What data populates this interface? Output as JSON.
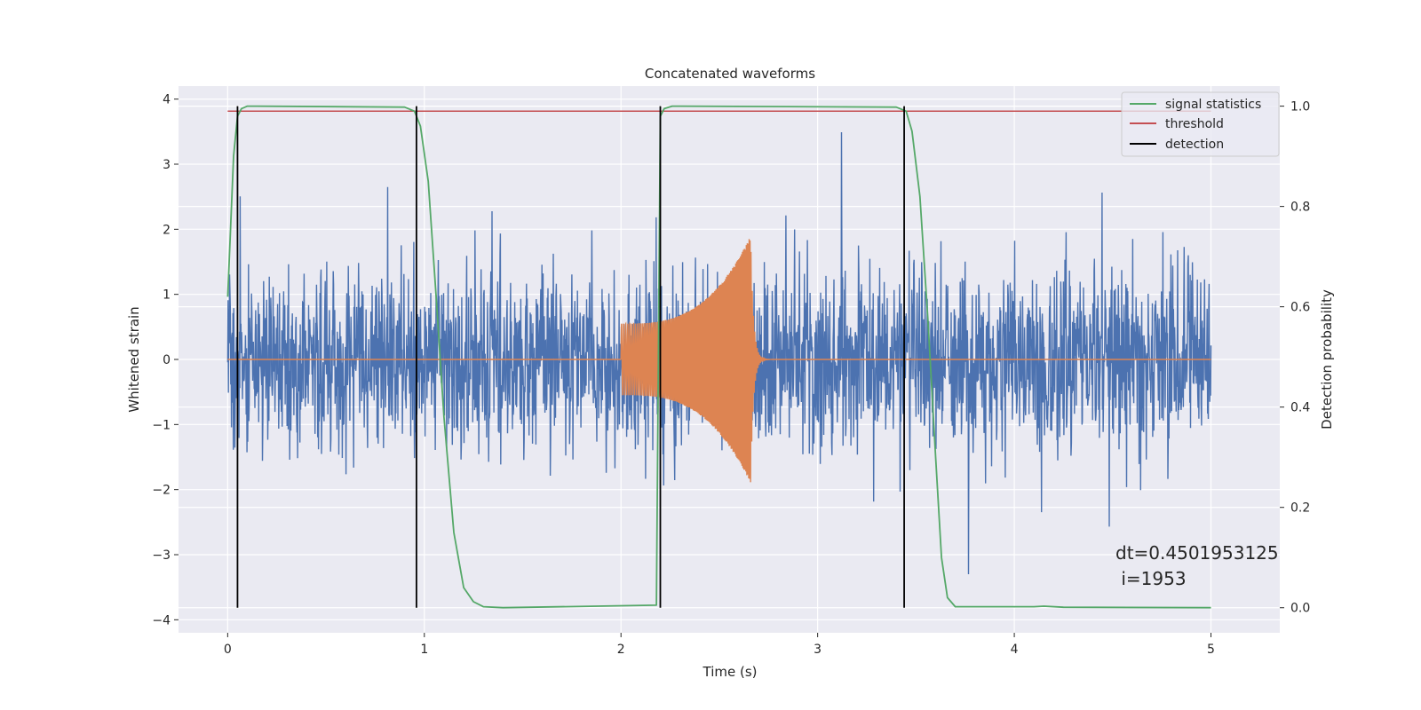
{
  "chart_data": {
    "type": "line",
    "title": "Concatenated waveforms",
    "xlabel": "Time (s)",
    "ylabel": "Whitened strain",
    "y2label": "Detection probability",
    "xlim": [
      -0.25,
      5.35
    ],
    "ylim": [
      -4.2,
      4.2
    ],
    "y2lim": [
      -0.05,
      1.04
    ],
    "x_ticks": [
      0,
      1,
      2,
      3,
      4,
      5
    ],
    "y_ticks": [
      -4,
      -3,
      -2,
      -1,
      0,
      1,
      2,
      3,
      4
    ],
    "y2_ticks": [
      0.0,
      0.2,
      0.4,
      0.6,
      0.8,
      1.0
    ],
    "x_tick_labels": [
      "0",
      "1",
      "2",
      "3",
      "4",
      "5"
    ],
    "y_tick_labels": [
      "−4",
      "−3",
      "−2",
      "−1",
      "0",
      "1",
      "2",
      "3",
      "4"
    ],
    "y2_tick_labels": [
      "0.0",
      "0.2",
      "0.4",
      "0.6",
      "0.8",
      "1.0"
    ],
    "grid": true,
    "legend_placement": "top-right",
    "colors": {
      "background": "#eaeaf2",
      "grid": "#ffffff",
      "noise": "#4c72b0",
      "chirp": "#dd8452",
      "signal_statistics": "#55a868",
      "threshold": "#c44e52",
      "detection": "#000000"
    },
    "series": [
      {
        "name": "signal statistics",
        "axis": "right",
        "x": [
          0.0,
          0.03,
          0.05,
          0.07,
          0.1,
          0.15,
          0.9,
          0.95,
          0.98,
          1.02,
          1.06,
          1.1,
          1.15,
          1.2,
          1.25,
          1.3,
          1.4,
          2.18,
          2.2,
          2.22,
          2.26,
          2.3,
          3.4,
          3.45,
          3.48,
          3.52,
          3.56,
          3.6,
          3.63,
          3.66,
          3.7,
          4.1,
          4.15,
          4.25,
          5.0
        ],
        "y": [
          0.62,
          0.9,
          0.98,
          0.995,
          1.0,
          1.0,
          0.998,
          0.99,
          0.96,
          0.85,
          0.62,
          0.38,
          0.15,
          0.04,
          0.012,
          0.002,
          0.0,
          0.005,
          0.98,
          0.995,
          1.0,
          1.0,
          0.998,
          0.99,
          0.95,
          0.82,
          0.58,
          0.3,
          0.1,
          0.02,
          0.002,
          0.002,
          0.003,
          0.001,
          0.0
        ]
      },
      {
        "name": "threshold",
        "axis": "right",
        "x": [
          0.0,
          5.0
        ],
        "y": [
          0.99,
          0.99
        ]
      },
      {
        "name": "detection",
        "axis": "right",
        "type": "vlines",
        "x": [
          0.05,
          0.96,
          2.2,
          3.44
        ],
        "ymin": 0.0,
        "ymax": 1.0
      }
    ],
    "noise_series": {
      "x_range": [
        0.0,
        5.0
      ],
      "typical_amplitude": 1.0,
      "y_range": [
        -3.9,
        3.6
      ]
    },
    "chirp_series": {
      "x_start": 2.0,
      "x_end": 2.66,
      "amplitude_start": 0.55,
      "amplitude_end": 1.9
    },
    "annotation": {
      "line1": "dt=0.4501953125",
      "line2": " i=1953"
    }
  }
}
